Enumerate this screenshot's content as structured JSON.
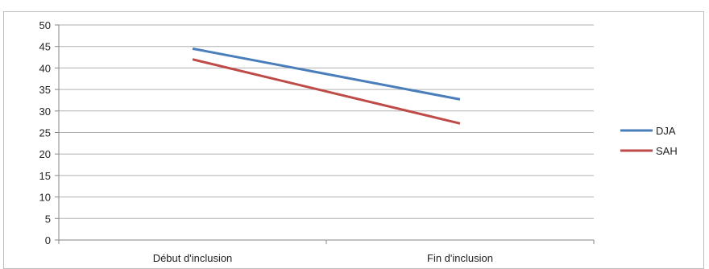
{
  "chart_data": {
    "type": "line",
    "title": "",
    "xlabel": "",
    "ylabel": "",
    "categories": [
      "Début d'inclusion",
      "Fin d'inclusion"
    ],
    "series": [
      {
        "name": "DJA",
        "values": [
          44.5,
          32.7
        ],
        "color": "#4a7ebb"
      },
      {
        "name": "SAH",
        "values": [
          42,
          27.1
        ],
        "color": "#be4b48"
      }
    ],
    "ylim": [
      0,
      50
    ],
    "yticks": [
      0,
      5,
      10,
      15,
      20,
      25,
      30,
      35,
      40,
      45,
      50
    ],
    "grid": true,
    "legend_position": "right",
    "colors": {
      "grid": "#b0b0b0",
      "axis": "#868686",
      "frame": "#bdbdbd"
    }
  }
}
